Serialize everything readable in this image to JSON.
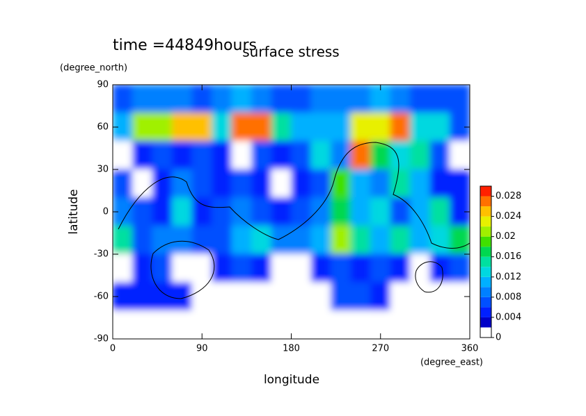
{
  "chart_data": {
    "type": "contour",
    "title": "surface stress",
    "subtitle": "time =44849hours",
    "x_label": "longitude",
    "x_unit": "(degree_east)",
    "y_label": "latitude",
    "y_unit": "(degree_north)",
    "x": [
      10,
      30,
      50,
      70,
      90,
      110,
      130,
      150,
      170,
      190,
      210,
      230,
      250,
      270,
      290,
      310,
      330,
      350
    ],
    "y": [
      80,
      60,
      40,
      20,
      0,
      -20,
      -40,
      -60,
      -80
    ],
    "cell": [
      20,
      20
    ],
    "values": [
      [
        0.006,
        0.008,
        0.008,
        0.008,
        0.006,
        0.008,
        0.01,
        0.008,
        0.006,
        0.006,
        0.008,
        0.008,
        0.008,
        0.01,
        0.008,
        0.006,
        0.006,
        0.006
      ],
      [
        0.01,
        0.02,
        0.02,
        0.024,
        0.024,
        0.012,
        0.026,
        0.026,
        0.014,
        0.01,
        0.01,
        0.01,
        0.022,
        0.022,
        0.026,
        0.012,
        0.012,
        0.006
      ],
      [
        0,
        0.004,
        0.006,
        0.004,
        0.006,
        0.004,
        0,
        0.006,
        0.004,
        0.006,
        0.012,
        0.008,
        0.026,
        0.016,
        0.012,
        0.014,
        0.006,
        0
      ],
      [
        0.006,
        0,
        0.004,
        0.008,
        0.006,
        0.004,
        0.006,
        0.004,
        0,
        0.004,
        0.006,
        0.018,
        0.01,
        0.008,
        0.014,
        0.01,
        0.004,
        0.004
      ],
      [
        0.008,
        0.006,
        0.004,
        0.012,
        0.004,
        0.006,
        0.008,
        0.006,
        0.004,
        0.006,
        0.008,
        0.016,
        0.01,
        0.012,
        0.006,
        0.01,
        0.014,
        0.004
      ],
      [
        0.014,
        0.006,
        0.008,
        0.008,
        0.006,
        0.006,
        0.01,
        0.012,
        0.008,
        0.008,
        0.01,
        0.02,
        0.014,
        0.01,
        0.014,
        0.01,
        0.012,
        0.016
      ],
      [
        0,
        0.004,
        0.006,
        0,
        0,
        0.004,
        0.006,
        0.004,
        0,
        0,
        0.004,
        0.006,
        0.004,
        0.006,
        0.004,
        0,
        0.004,
        0.006
      ],
      [
        0.004,
        0.004,
        0.004,
        0.004,
        0,
        0,
        0,
        0,
        0,
        0,
        0,
        0.006,
        0.006,
        0.004,
        0,
        0,
        0,
        0
      ],
      [
        0,
        0,
        0,
        0,
        0,
        0,
        0,
        0,
        0,
        0,
        0,
        0,
        0,
        0,
        0,
        0,
        0,
        0
      ]
    ],
    "xlim": [
      0,
      360
    ],
    "ylim": [
      -90,
      90
    ],
    "xticks": [
      0,
      90,
      180,
      270,
      360
    ],
    "yticks": [
      -90,
      -60,
      -30,
      0,
      30,
      60,
      90
    ],
    "clim": [
      0,
      0.03
    ],
    "cticks": [
      0,
      0.004,
      0.008,
      0.012,
      0.016,
      0.02,
      0.024,
      0.028
    ],
    "colors": [
      "#ffffff",
      "#0000c8",
      "#0020ff",
      "#0050ff",
      "#0080ff",
      "#00b0ff",
      "#00d8e0",
      "#00e0a0",
      "#00d850",
      "#40e000",
      "#a0f000",
      "#e8f000",
      "#ffc000",
      "#ff7000",
      "#ff2000"
    ]
  }
}
